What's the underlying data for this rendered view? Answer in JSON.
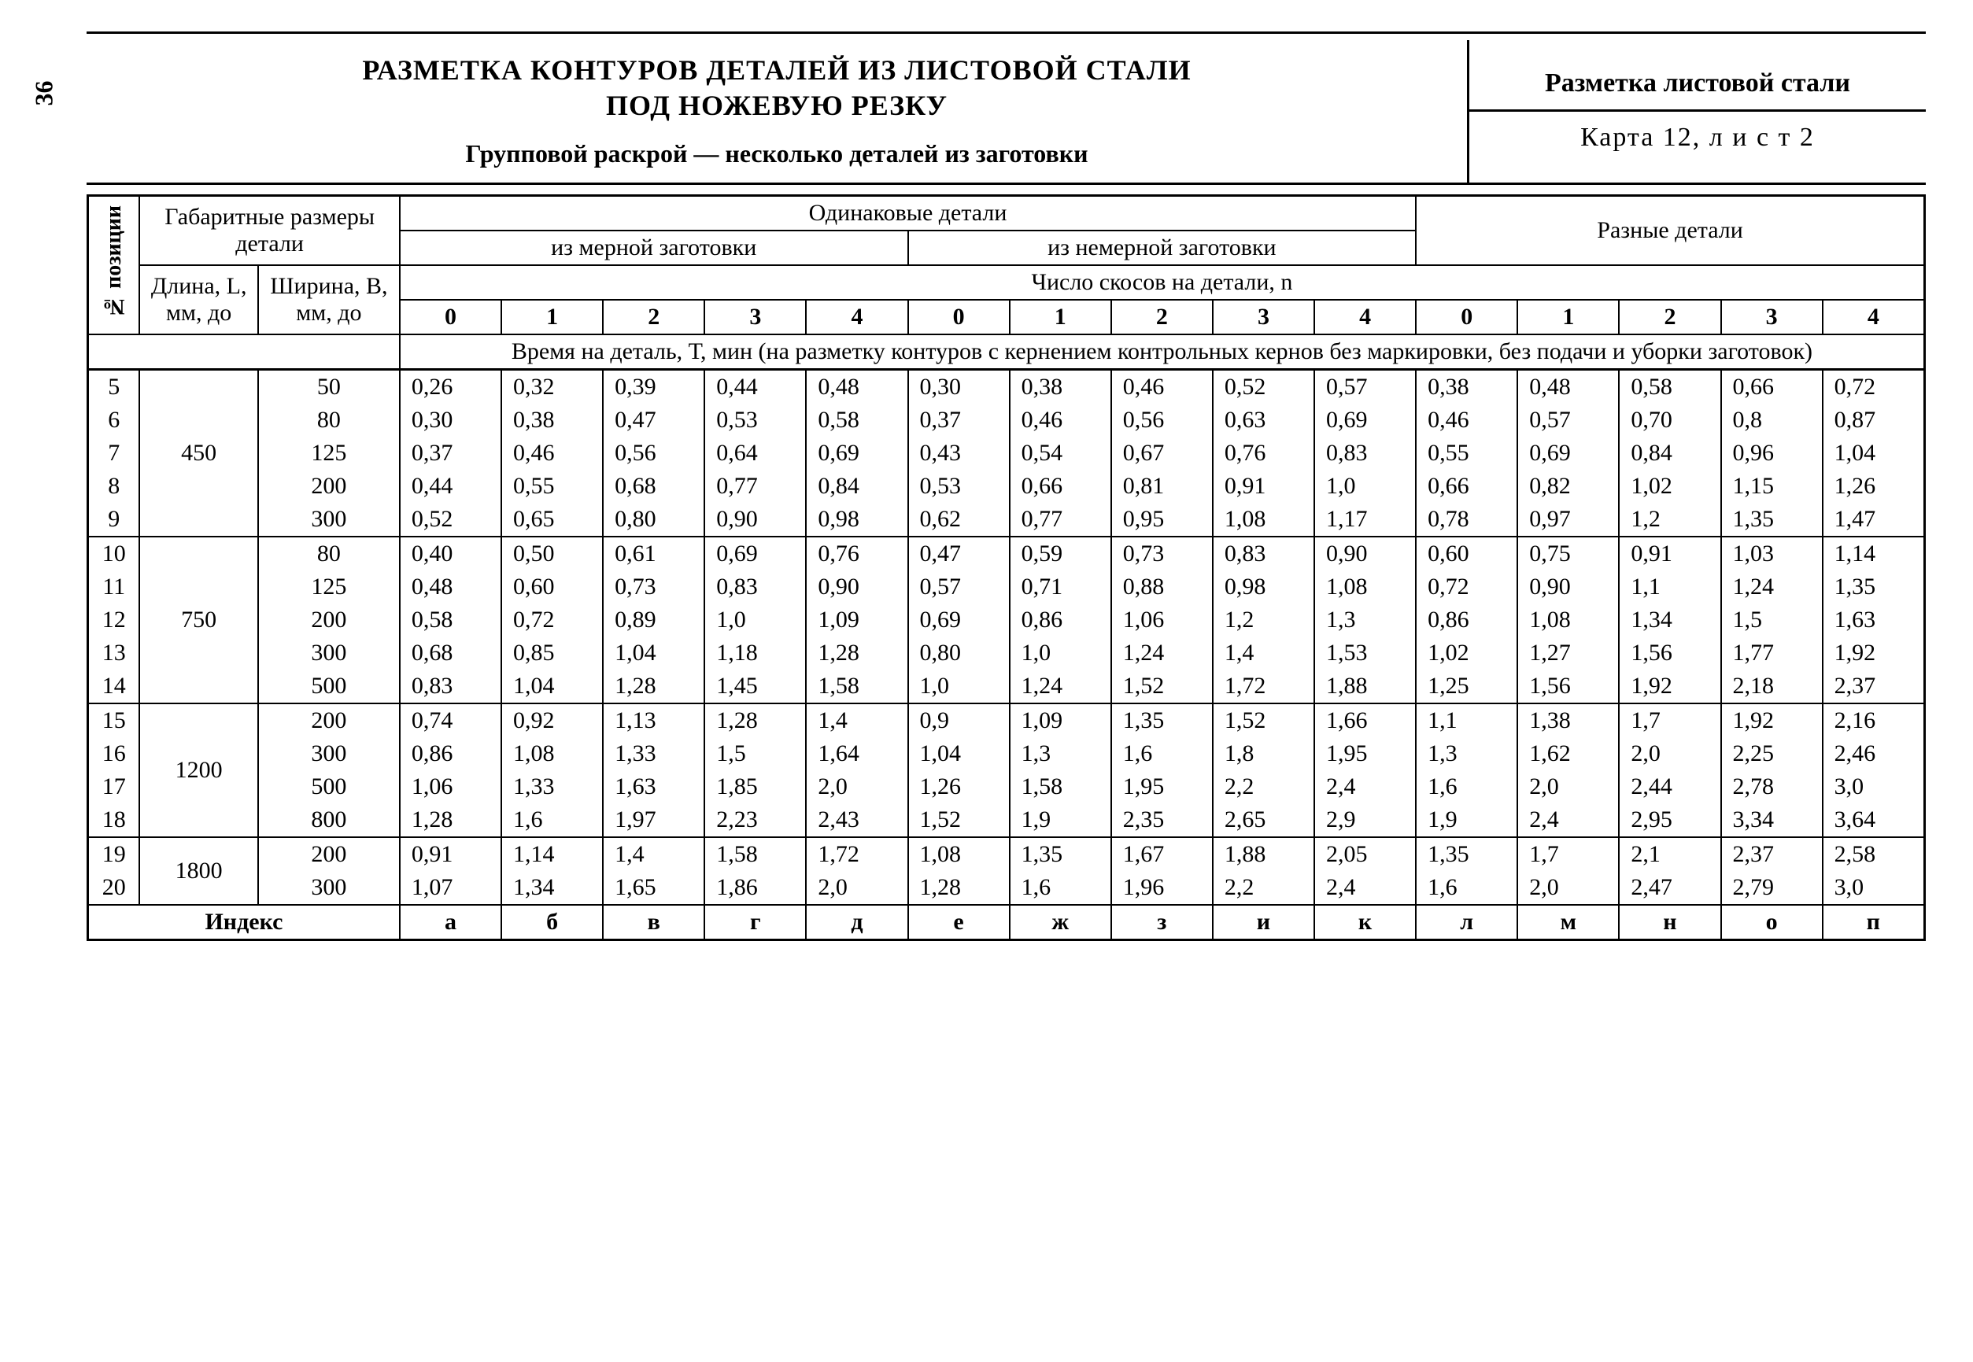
{
  "page_number": "36",
  "header": {
    "title_line1": "РАЗМЕТКА КОНТУРОВ ДЕТАЛЕЙ ИЗ ЛИСТОВОЙ СТАЛИ",
    "title_line2": "ПОД НОЖЕВУЮ РЕЗКУ",
    "subtitle": "Групповой раскрой — несколько деталей из заготовки",
    "right_line1": "Разметка листовой стали",
    "right_line2": "Карта 12, л и с т  2"
  },
  "col_headers": {
    "pos": "№ позиции",
    "dims": "Габаритные размеры детали",
    "length": "Длина, L, мм, до",
    "width": "Ширина, В, мм, до",
    "same": "Одинаковые детали",
    "from_sized": "из мерной заготовки",
    "from_unsized": "из немерной заготовки",
    "different": "Разные детали",
    "bevels": "Число скосов на детали, n",
    "time_note": "Время на деталь, Т, мин (на разметку контуров с кернением контрольных кернов без маркировки, без подачи и уборки заготовок)",
    "index": "Индекс"
  },
  "n_labels": [
    "0",
    "1",
    "2",
    "3",
    "4",
    "0",
    "1",
    "2",
    "3",
    "4",
    "0",
    "1",
    "2",
    "3",
    "4"
  ],
  "index_row": [
    "а",
    "б",
    "в",
    "г",
    "д",
    "е",
    "ж",
    "з",
    "и",
    "к",
    "л",
    "м",
    "н",
    "о",
    "п"
  ],
  "groups": [
    {
      "length": "450",
      "rows": [
        {
          "pos": "5",
          "width": "50",
          "v": [
            "0,26",
            "0,32",
            "0,39",
            "0,44",
            "0,48",
            "0,30",
            "0,38",
            "0,46",
            "0,52",
            "0,57",
            "0,38",
            "0,48",
            "0,58",
            "0,66",
            "0,72"
          ]
        },
        {
          "pos": "6",
          "width": "80",
          "v": [
            "0,30",
            "0,38",
            "0,47",
            "0,53",
            "0,58",
            "0,37",
            "0,46",
            "0,56",
            "0,63",
            "0,69",
            "0,46",
            "0,57",
            "0,70",
            "0,8",
            "0,87"
          ]
        },
        {
          "pos": "7",
          "width": "125",
          "v": [
            "0,37",
            "0,46",
            "0,56",
            "0,64",
            "0,69",
            "0,43",
            "0,54",
            "0,67",
            "0,76",
            "0,83",
            "0,55",
            "0,69",
            "0,84",
            "0,96",
            "1,04"
          ]
        },
        {
          "pos": "8",
          "width": "200",
          "v": [
            "0,44",
            "0,55",
            "0,68",
            "0,77",
            "0,84",
            "0,53",
            "0,66",
            "0,81",
            "0,91",
            "1,0",
            "0,66",
            "0,82",
            "1,02",
            "1,15",
            "1,26"
          ]
        },
        {
          "pos": "9",
          "width": "300",
          "v": [
            "0,52",
            "0,65",
            "0,80",
            "0,90",
            "0,98",
            "0,62",
            "0,77",
            "0,95",
            "1,08",
            "1,17",
            "0,78",
            "0,97",
            "1,2",
            "1,35",
            "1,47"
          ]
        }
      ]
    },
    {
      "length": "750",
      "rows": [
        {
          "pos": "10",
          "width": "80",
          "v": [
            "0,40",
            "0,50",
            "0,61",
            "0,69",
            "0,76",
            "0,47",
            "0,59",
            "0,73",
            "0,83",
            "0,90",
            "0,60",
            "0,75",
            "0,91",
            "1,03",
            "1,14"
          ]
        },
        {
          "pos": "11",
          "width": "125",
          "v": [
            "0,48",
            "0,60",
            "0,73",
            "0,83",
            "0,90",
            "0,57",
            "0,71",
            "0,88",
            "0,98",
            "1,08",
            "0,72",
            "0,90",
            "1,1",
            "1,24",
            "1,35"
          ]
        },
        {
          "pos": "12",
          "width": "200",
          "v": [
            "0,58",
            "0,72",
            "0,89",
            "1,0",
            "1,09",
            "0,69",
            "0,86",
            "1,06",
            "1,2",
            "1,3",
            "0,86",
            "1,08",
            "1,34",
            "1,5",
            "1,63"
          ]
        },
        {
          "pos": "13",
          "width": "300",
          "v": [
            "0,68",
            "0,85",
            "1,04",
            "1,18",
            "1,28",
            "0,80",
            "1,0",
            "1,24",
            "1,4",
            "1,53",
            "1,02",
            "1,27",
            "1,56",
            "1,77",
            "1,92"
          ]
        },
        {
          "pos": "14",
          "width": "500",
          "v": [
            "0,83",
            "1,04",
            "1,28",
            "1,45",
            "1,58",
            "1,0",
            "1,24",
            "1,52",
            "1,72",
            "1,88",
            "1,25",
            "1,56",
            "1,92",
            "2,18",
            "2,37"
          ]
        }
      ]
    },
    {
      "length": "1200",
      "rows": [
        {
          "pos": "15",
          "width": "200",
          "v": [
            "0,74",
            "0,92",
            "1,13",
            "1,28",
            "1,4",
            "0,9",
            "1,09",
            "1,35",
            "1,52",
            "1,66",
            "1,1",
            "1,38",
            "1,7",
            "1,92",
            "2,16"
          ]
        },
        {
          "pos": "16",
          "width": "300",
          "v": [
            "0,86",
            "1,08",
            "1,33",
            "1,5",
            "1,64",
            "1,04",
            "1,3",
            "1,6",
            "1,8",
            "1,95",
            "1,3",
            "1,62",
            "2,0",
            "2,25",
            "2,46"
          ]
        },
        {
          "pos": "17",
          "width": "500",
          "v": [
            "1,06",
            "1,33",
            "1,63",
            "1,85",
            "2,0",
            "1,26",
            "1,58",
            "1,95",
            "2,2",
            "2,4",
            "1,6",
            "2,0",
            "2,44",
            "2,78",
            "3,0"
          ]
        },
        {
          "pos": "18",
          "width": "800",
          "v": [
            "1,28",
            "1,6",
            "1,97",
            "2,23",
            "2,43",
            "1,52",
            "1,9",
            "2,35",
            "2,65",
            "2,9",
            "1,9",
            "2,4",
            "2,95",
            "3,34",
            "3,64"
          ]
        }
      ]
    },
    {
      "length": "1800",
      "rows": [
        {
          "pos": "19",
          "width": "200",
          "v": [
            "0,91",
            "1,14",
            "1,4",
            "1,58",
            "1,72",
            "1,08",
            "1,35",
            "1,67",
            "1,88",
            "2,05",
            "1,35",
            "1,7",
            "2,1",
            "2,37",
            "2,58"
          ]
        },
        {
          "pos": "20",
          "width": "300",
          "v": [
            "1,07",
            "1,34",
            "1,65",
            "1,86",
            "2,0",
            "1,28",
            "1,6",
            "1,96",
            "2,2",
            "2,4",
            "1,6",
            "2,0",
            "2,47",
            "2,79",
            "3,0"
          ]
        }
      ]
    }
  ],
  "style": {
    "background": "#ffffff",
    "text_color": "#000000",
    "border_color": "#000000",
    "title_fontsize": 36,
    "cell_fontsize": 30,
    "font_family": "Times New Roman"
  }
}
